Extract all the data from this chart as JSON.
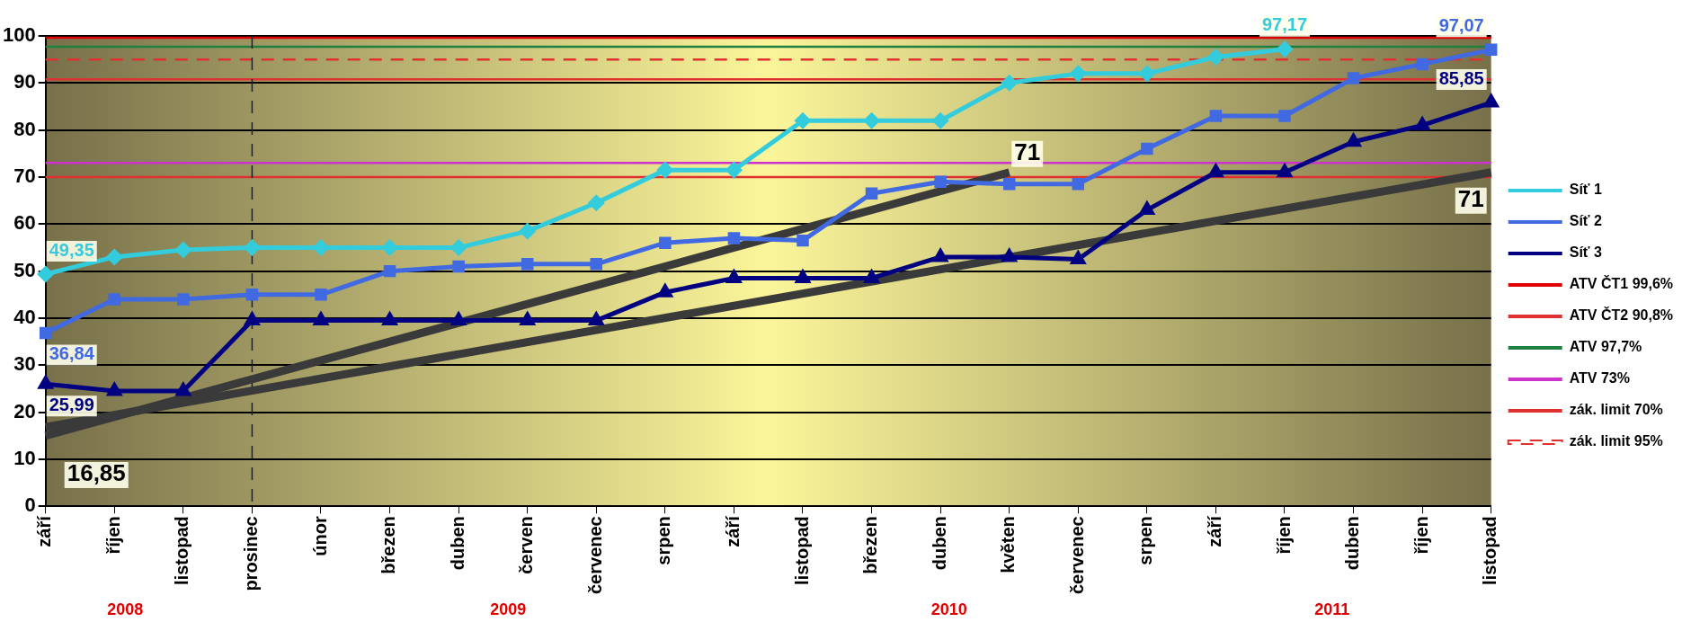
{
  "chart_data": {
    "type": "line",
    "categories": [
      "září",
      "říjen",
      "listopad",
      "prosinec",
      "únor",
      "březen",
      "duben",
      "červen",
      "červenec",
      "srpen",
      "září",
      "listopad",
      "březen",
      "duben",
      "květen",
      "červenec",
      "srpen",
      "září",
      "říjen",
      "duben",
      "říjen",
      "listopad"
    ],
    "series": [
      {
        "name": "Síť 1",
        "color": "#33ccdd",
        "marker": "diamond",
        "values": [
          49.35,
          53,
          54.5,
          55,
          55,
          55,
          55,
          58.5,
          64.5,
          71.5,
          71.5,
          82,
          82,
          82,
          90,
          92,
          92,
          95.5,
          97.17,
          null,
          null,
          null
        ],
        "value_labels": [
          "49,35",
          null,
          null,
          null,
          null,
          null,
          null,
          null,
          null,
          null,
          null,
          null,
          null,
          null,
          null,
          null,
          null,
          null,
          "97,17",
          null,
          null,
          null
        ]
      },
      {
        "name": "Síť 2",
        "color": "#4169e1",
        "marker": "square",
        "values": [
          36.84,
          44,
          44,
          45,
          45,
          50,
          51,
          51.5,
          51.5,
          56,
          57,
          56.5,
          66.5,
          69,
          68.5,
          68.5,
          76,
          83,
          83,
          91,
          94,
          97.07
        ],
        "value_labels": [
          "36,84",
          null,
          null,
          null,
          null,
          null,
          null,
          null,
          null,
          null,
          null,
          null,
          null,
          null,
          null,
          null,
          null,
          null,
          null,
          null,
          null,
          "97,07"
        ]
      },
      {
        "name": "Síť 3",
        "color": "#000080",
        "marker": "triangle",
        "values": [
          25.99,
          24.5,
          24.5,
          39.5,
          39.5,
          39.5,
          39.5,
          39.5,
          39.5,
          45.5,
          48.5,
          48.5,
          48.5,
          53,
          53,
          52.5,
          63,
          71,
          71,
          77.5,
          81,
          85.85
        ],
        "value_labels": [
          "25,99",
          null,
          null,
          null,
          null,
          null,
          null,
          null,
          null,
          null,
          null,
          null,
          null,
          null,
          null,
          null,
          null,
          null,
          null,
          null,
          null,
          "85,85"
        ]
      },
      {
        "color": "#3a3a3a",
        "marker": "none",
        "values": [
          16.85,
          null,
          null,
          null,
          null,
          null,
          null,
          null,
          null,
          null,
          null,
          null,
          null,
          null,
          null,
          null,
          null,
          null,
          null,
          null,
          null,
          71
        ],
        "value_labels": [
          "16,85",
          null,
          null,
          null,
          null,
          null,
          null,
          null,
          null,
          null,
          null,
          null,
          null,
          null,
          null,
          null,
          null,
          null,
          null,
          null,
          null,
          "71"
        ]
      },
      {
        "color": "#3a3a3a",
        "marker": "none",
        "values": [
          15,
          null,
          null,
          null,
          null,
          null,
          null,
          null,
          null,
          null,
          null,
          null,
          null,
          null,
          71,
          null,
          null,
          null,
          null,
          null,
          null,
          null
        ],
        "value_labels": [
          null,
          null,
          null,
          null,
          null,
          null,
          null,
          null,
          null,
          null,
          null,
          null,
          null,
          null,
          "71",
          null,
          null,
          null,
          null,
          null,
          null,
          null
        ]
      }
    ],
    "ylim": [
      0,
      100
    ],
    "yticks": [
      0,
      10,
      20,
      30,
      40,
      50,
      60,
      70,
      80,
      90,
      100
    ],
    "grid": "y",
    "legend": "right",
    "ref_lines": [
      {
        "axis": "y",
        "value": 99.6,
        "label": "ATV ČT1 99,6%",
        "color": "#e00000",
        "line_style": "solid"
      },
      {
        "axis": "y",
        "value": 90.8,
        "label": "ATV ČT2 90,8%",
        "color": "#e03030",
        "line_style": "solid"
      },
      {
        "axis": "y",
        "value": 97.7,
        "label": "ATV 97,7%",
        "color": "#208040",
        "line_style": "solid"
      },
      {
        "axis": "y",
        "value": 73,
        "label": "ATV 73%",
        "color": "#cc33cc",
        "line_style": "solid"
      },
      {
        "axis": "y",
        "value": 70,
        "label": "zák. limit 70%",
        "color": "#e03030",
        "line_style": "solid"
      },
      {
        "axis": "y",
        "value": 95,
        "label": "zák. limit 95%",
        "color": "#e03030",
        "line_style": "dashed"
      },
      {
        "axis": "x",
        "value": "prosinec",
        "color": "#222222",
        "line_style": "dashed"
      }
    ],
    "annotations": [
      "2008",
      "2009",
      "2010",
      "2011"
    ]
  }
}
